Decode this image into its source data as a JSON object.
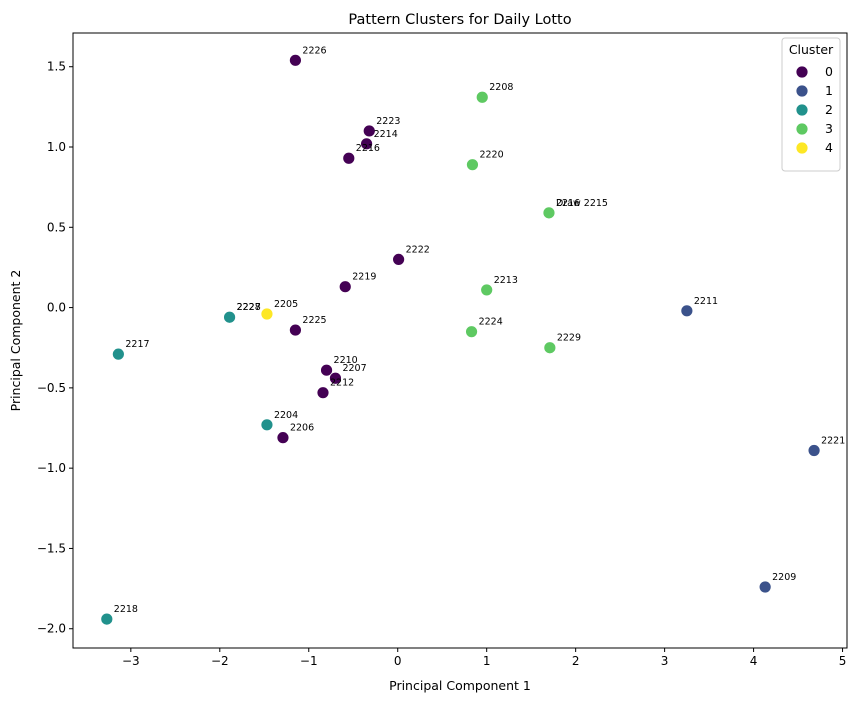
{
  "chart_data": {
    "type": "scatter",
    "title": "Pattern Clusters for Daily Lotto",
    "xlabel": "Principal Component 1",
    "ylabel": "Principal Component 2",
    "xlim": [
      -3.65,
      5.05
    ],
    "ylim": [
      -2.12,
      1.71
    ],
    "xticks": [
      -3,
      -2,
      -1,
      0,
      1,
      2,
      3,
      4,
      5
    ],
    "yticks": [
      -2.0,
      -1.5,
      -1.0,
      -0.5,
      0.0,
      0.5,
      1.0,
      1.5
    ],
    "grid": false,
    "legend": {
      "title": "Cluster",
      "position": "top-right",
      "entries": [
        "0",
        "1",
        "2",
        "3",
        "4"
      ]
    },
    "cluster_colors": {
      "0": "#440154",
      "1": "#3b528b",
      "2": "#21918c",
      "3": "#5ec962",
      "4": "#fde725"
    },
    "points": [
      {
        "label": "2226",
        "x": -1.15,
        "y": 1.54,
        "cluster": "0"
      },
      {
        "label": "2223",
        "x": -0.32,
        "y": 1.1,
        "cluster": "0"
      },
      {
        "label": "2214",
        "x": -0.35,
        "y": 1.02,
        "cluster": "0"
      },
      {
        "label": "2216",
        "x": -0.55,
        "y": 0.93,
        "cluster": "0"
      },
      {
        "label": "2222",
        "x": 0.01,
        "y": 0.3,
        "cluster": "0"
      },
      {
        "label": "2219",
        "x": -0.59,
        "y": 0.13,
        "cluster": "0"
      },
      {
        "label": "2225",
        "x": -1.15,
        "y": -0.14,
        "cluster": "0"
      },
      {
        "label": "2210",
        "x": -0.8,
        "y": -0.39,
        "cluster": "0"
      },
      {
        "label": "2207",
        "x": -0.7,
        "y": -0.44,
        "cluster": "0"
      },
      {
        "label": "2212",
        "x": -0.84,
        "y": -0.53,
        "cluster": "0"
      },
      {
        "label": "2206",
        "x": -1.29,
        "y": -0.81,
        "cluster": "0"
      },
      {
        "label": "2211",
        "x": 3.25,
        "y": -0.02,
        "cluster": "1"
      },
      {
        "label": "2221",
        "x": 4.68,
        "y": -0.89,
        "cluster": "1"
      },
      {
        "label": "2209",
        "x": 4.13,
        "y": -1.74,
        "cluster": "1"
      },
      {
        "label": "2227",
        "x": -1.89,
        "y": -0.06,
        "cluster": "2"
      },
      {
        "label": "2228",
        "x": -1.89,
        "y": -0.06,
        "cluster": "2"
      },
      {
        "label": "2217",
        "x": -3.14,
        "y": -0.29,
        "cluster": "2"
      },
      {
        "label": "2204",
        "x": -1.47,
        "y": -0.73,
        "cluster": "2"
      },
      {
        "label": "2218",
        "x": -3.27,
        "y": -1.94,
        "cluster": "2"
      },
      {
        "label": "2208",
        "x": 0.95,
        "y": 1.31,
        "cluster": "3"
      },
      {
        "label": "2220",
        "x": 0.84,
        "y": 0.89,
        "cluster": "3"
      },
      {
        "label": "2216",
        "x": 1.7,
        "y": 0.59,
        "cluster": "3"
      },
      {
        "label": "Draw 2215",
        "x": 1.7,
        "y": 0.59,
        "cluster": "3"
      },
      {
        "label": "2213",
        "x": 1.0,
        "y": 0.11,
        "cluster": "3"
      },
      {
        "label": "2224",
        "x": 0.83,
        "y": -0.15,
        "cluster": "3"
      },
      {
        "label": "2229",
        "x": 1.71,
        "y": -0.25,
        "cluster": "3"
      },
      {
        "label": "2205",
        "x": -1.47,
        "y": -0.04,
        "cluster": "4"
      }
    ]
  }
}
